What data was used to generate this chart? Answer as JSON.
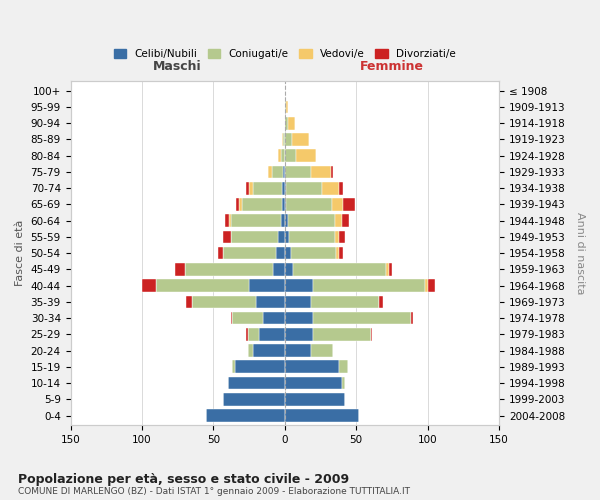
{
  "age_groups": [
    "0-4",
    "5-9",
    "10-14",
    "15-19",
    "20-24",
    "25-29",
    "30-34",
    "35-39",
    "40-44",
    "45-49",
    "50-54",
    "55-59",
    "60-64",
    "65-69",
    "70-74",
    "75-79",
    "80-84",
    "85-89",
    "90-94",
    "95-99",
    "100+"
  ],
  "birth_years": [
    "2004-2008",
    "1999-2003",
    "1994-1998",
    "1989-1993",
    "1984-1988",
    "1979-1983",
    "1974-1978",
    "1969-1973",
    "1964-1968",
    "1959-1963",
    "1954-1958",
    "1949-1953",
    "1944-1948",
    "1939-1943",
    "1934-1938",
    "1929-1933",
    "1924-1928",
    "1919-1923",
    "1914-1918",
    "1909-1913",
    "≤ 1908"
  ],
  "colors": {
    "celibi": "#3a6ea5",
    "coniugati": "#b5c98e",
    "vedovi": "#f5c96a",
    "divorziati": "#cc2222"
  },
  "male": {
    "celibi": [
      55,
      43,
      40,
      35,
      22,
      18,
      15,
      20,
      25,
      8,
      6,
      5,
      3,
      2,
      2,
      1,
      0,
      0,
      0,
      0,
      0
    ],
    "coniugati": [
      0,
      0,
      0,
      2,
      4,
      8,
      22,
      45,
      65,
      62,
      37,
      33,
      35,
      28,
      20,
      8,
      3,
      1,
      0,
      0,
      0
    ],
    "vedovi": [
      0,
      0,
      0,
      0,
      0,
      0,
      0,
      0,
      0,
      0,
      0,
      0,
      1,
      2,
      3,
      3,
      2,
      1,
      0,
      0,
      0
    ],
    "divorziati": [
      0,
      0,
      0,
      0,
      0,
      1,
      1,
      4,
      10,
      7,
      4,
      5,
      3,
      2,
      2,
      0,
      0,
      0,
      0,
      0,
      0
    ]
  },
  "female": {
    "celibi": [
      52,
      42,
      40,
      38,
      18,
      20,
      20,
      18,
      20,
      6,
      4,
      3,
      2,
      1,
      1,
      0,
      0,
      0,
      0,
      0,
      0
    ],
    "coniugati": [
      0,
      0,
      2,
      6,
      16,
      40,
      68,
      48,
      78,
      65,
      32,
      32,
      33,
      32,
      25,
      18,
      8,
      5,
      2,
      1,
      0
    ],
    "vedovi": [
      0,
      0,
      0,
      0,
      0,
      0,
      0,
      0,
      2,
      2,
      2,
      3,
      5,
      8,
      12,
      14,
      14,
      12,
      5,
      1,
      0
    ],
    "divorziati": [
      0,
      0,
      0,
      0,
      0,
      1,
      2,
      3,
      5,
      2,
      3,
      4,
      5,
      8,
      3,
      2,
      0,
      0,
      0,
      0,
      0
    ]
  },
  "xlim": 150,
  "title": "Popolazione per età, sesso e stato civile - 2009",
  "subtitle": "COMUNE DI MARLENGO (BZ) - Dati ISTAT 1° gennaio 2009 - Elaborazione TUTTITALIA.IT",
  "ylabel_left": "Fasce di età",
  "ylabel_right": "Anni di nascita",
  "xlabel_left": "Maschi",
  "xlabel_right": "Femmine",
  "bg_color": "#f0f0f0",
  "plot_bg_color": "#ffffff"
}
